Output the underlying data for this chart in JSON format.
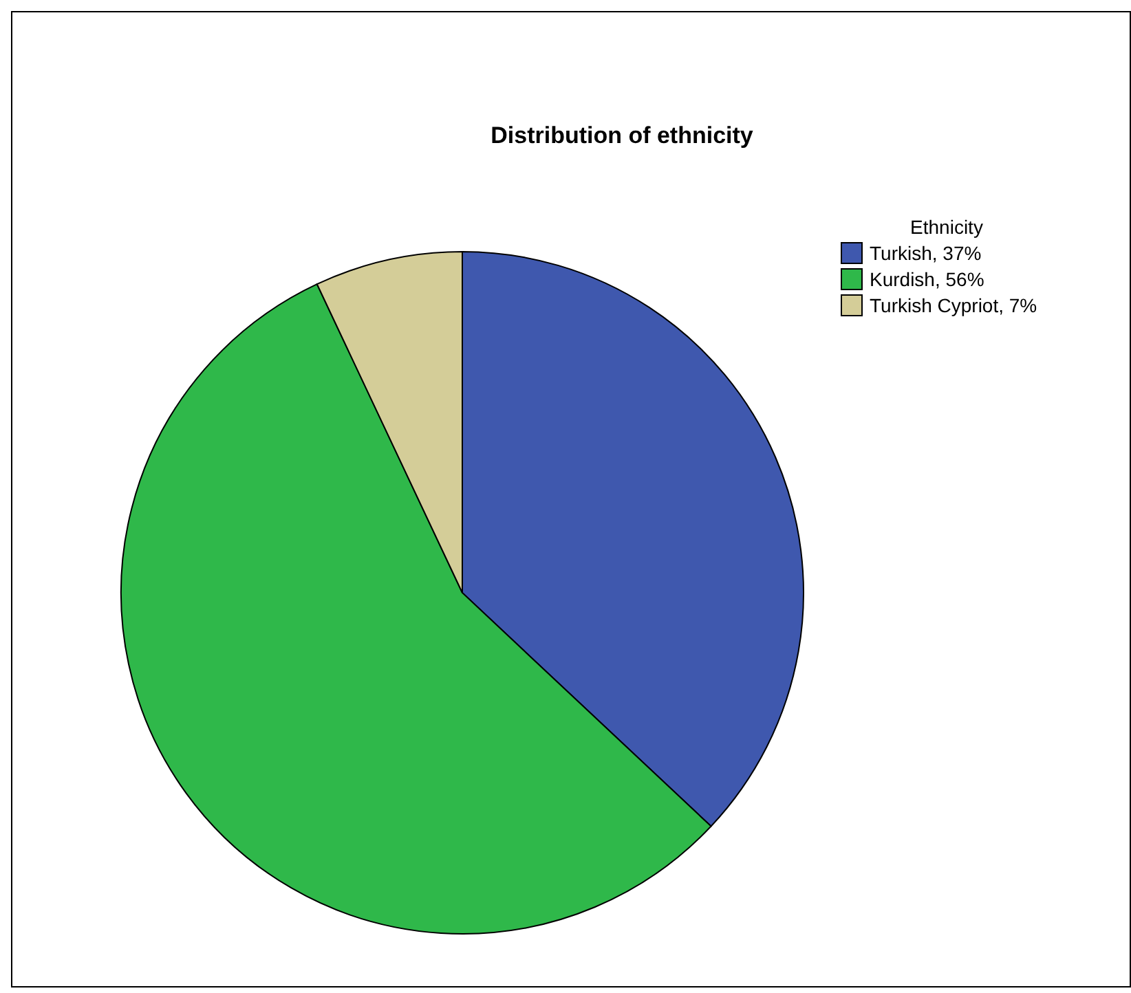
{
  "chart_data": {
    "type": "pie",
    "title": "Distribution of ethnicity",
    "legend_title": "Ethnicity",
    "legend": "top right",
    "categories": [
      "Turkish, 37%",
      "Kurdish, 56%",
      "Turkish Cypriot, 7%"
    ],
    "values": [
      37,
      56,
      7
    ],
    "colors": [
      "#3f58ae",
      "#2fb84a",
      "#d4cd98"
    ]
  }
}
